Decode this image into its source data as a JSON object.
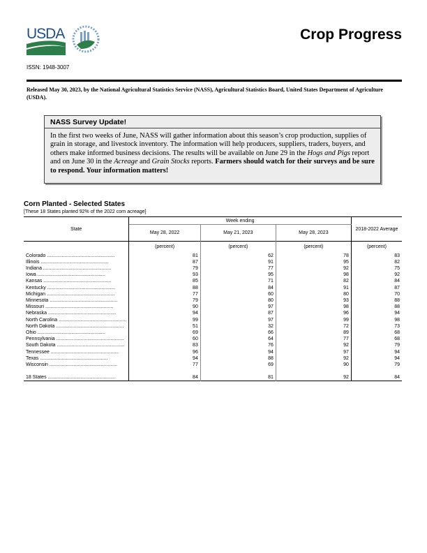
{
  "header": {
    "title": "Crop Progress",
    "issn": "ISSN: 1948-3007",
    "logo_text": "USDA",
    "seal_text": "AGRICULTURE COUNTS"
  },
  "release": "Released May 30, 2023, by the National Agricultural Statistics Service (NASS), Agricultural Statistics Board, United States Department of Agriculture (USDA).",
  "notice": {
    "heading": "NASS Survey Update!",
    "body_1": "In the first two weeks of June, NASS will gather information about this season’s crop production, supplies of grain in storage, and livestock inventory. The information will help producers, suppliers, traders, buyers, and others make informed business decisions. The results will be available on June 29 in the ",
    "italic_1": "Hogs and Pigs",
    "body_2": " report and on June 30 in the ",
    "italic_2": "Acreage",
    "body_3": " and ",
    "italic_3": "Grain Stocks",
    "body_4": " reports. ",
    "bold": "Farmers should watch for their surveys and be sure to respond. Your information matters!"
  },
  "table": {
    "title": "Corn Planted - Selected States",
    "note": "[These 18 States planted 92% of the 2022 corn acreage]",
    "state_header": "State",
    "week_ending": "Week ending",
    "columns": [
      "May 28, 2022",
      "May 21, 2023",
      "May 28, 2023",
      "2018-2022 Average"
    ],
    "unit": "(percent)",
    "rows": [
      [
        "Colorado",
        "81",
        "62",
        "78",
        "83"
      ],
      [
        "Illinois",
        "87",
        "91",
        "95",
        "82"
      ],
      [
        "Indiana",
        "79",
        "77",
        "92",
        "75"
      ],
      [
        "Iowa",
        "93",
        "95",
        "98",
        "92"
      ],
      [
        "Kansas",
        "85",
        "71",
        "82",
        "84"
      ],
      [
        "Kentucky",
        "88",
        "84",
        "91",
        "87"
      ],
      [
        "Michigan",
        "77",
        "60",
        "80",
        "70"
      ],
      [
        "Minnesota",
        "79",
        "80",
        "93",
        "88"
      ],
      [
        "Missouri",
        "90",
        "97",
        "98",
        "88"
      ],
      [
        "Nebraska",
        "94",
        "87",
        "96",
        "94"
      ],
      [
        "North Carolina",
        "99",
        "97",
        "99",
        "98"
      ],
      [
        "North Dakota",
        "51",
        "32",
        "72",
        "73"
      ],
      [
        "Ohio",
        "69",
        "66",
        "89",
        "68"
      ],
      [
        "Pennsylvania",
        "60",
        "64",
        "77",
        "68"
      ],
      [
        "South Dakota",
        "83",
        "76",
        "92",
        "79"
      ],
      [
        "Tennessee",
        "96",
        "94",
        "97",
        "94"
      ],
      [
        "Texas",
        "94",
        "88",
        "92",
        "94"
      ],
      [
        "Wisconsin",
        "77",
        "69",
        "90",
        "79"
      ]
    ],
    "total": [
      "18 States",
      "84",
      "81",
      "92",
      "84"
    ]
  }
}
